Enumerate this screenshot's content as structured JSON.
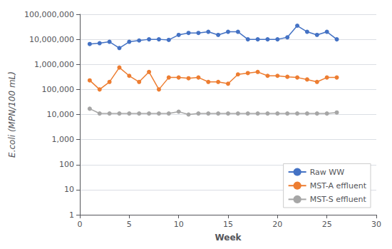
{
  "chart_data": {
    "type": "line",
    "x": [
      1,
      2,
      3,
      4,
      5,
      6,
      7,
      8,
      9,
      10,
      11,
      12,
      13,
      14,
      15,
      16,
      17,
      18,
      19,
      20,
      21,
      22,
      23,
      24,
      25,
      26
    ],
    "series": [
      {
        "name": "Raw WW",
        "color": "#4472C4",
        "values": [
          6500000,
          7000000,
          8000000,
          4500000,
          8000000,
          9000000,
          10000000,
          10000000,
          9500000,
          15000000,
          18000000,
          18000000,
          20000000,
          15000000,
          20000000,
          20000000,
          10000000,
          10000000,
          10000000,
          10000000,
          12000000,
          35000000,
          20000000,
          15000000,
          20000000,
          10000000
        ]
      },
      {
        "name": "MST-A effluent",
        "color": "#ED7D31",
        "values": [
          230000,
          100000,
          200000,
          750000,
          350000,
          200000,
          500000,
          100000,
          300000,
          300000,
          280000,
          300000,
          200000,
          200000,
          170000,
          400000,
          450000,
          500000,
          350000,
          350000,
          320000,
          300000,
          250000,
          200000,
          300000,
          300000
        ]
      },
      {
        "name": "MST-S effluent",
        "color": "#A6A6A6",
        "values": [
          17000,
          11000,
          11000,
          11000,
          11000,
          11000,
          11000,
          11000,
          11000,
          13000,
          10000,
          11000,
          11000,
          11000,
          11000,
          11000,
          11000,
          11000,
          11000,
          11000,
          11000,
          11000,
          11000,
          11000,
          11000,
          12000
        ]
      }
    ],
    "xlabel": "Week",
    "ylabel": "E.coli (MPN/100 mL)",
    "xlim": [
      0,
      30
    ],
    "xticks": [
      0,
      5,
      10,
      15,
      20,
      25,
      30
    ],
    "ylim": [
      1,
      100000000
    ],
    "yticks": [
      1,
      10,
      100,
      {
        "value": 1000,
        "label": "1,000"
      },
      {
        "value": 10000,
        "label": "10,000"
      },
      {
        "value": 100000,
        "label": "100,000"
      },
      {
        "value": 1000000,
        "label": "1,000,000"
      },
      {
        "value": 10000000,
        "label": "10,000,000"
      },
      {
        "value": 100000000,
        "label": "100,000,000"
      }
    ],
    "log": "y",
    "grid": "y",
    "legend": "lower right",
    "marker": "circle"
  }
}
